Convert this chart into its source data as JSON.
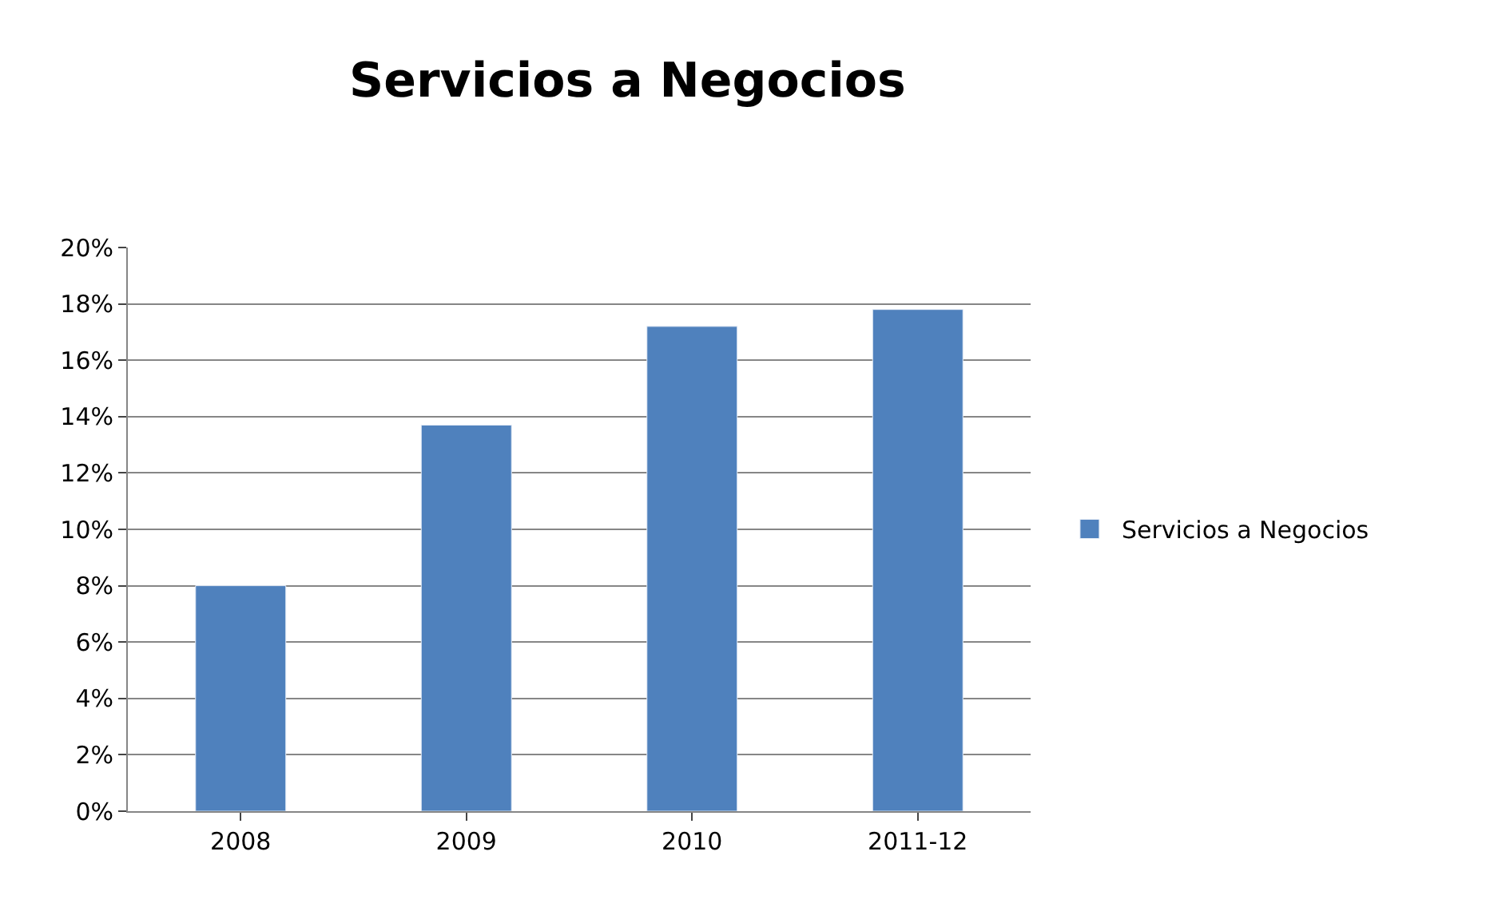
{
  "chart_data": {
    "type": "bar",
    "title": "Servicios a Negocios",
    "categories": [
      "2008",
      "2009",
      "2010",
      "2011-12"
    ],
    "series": [
      {
        "name": "Servicios a Negocios",
        "color": "#4f81bd",
        "values": [
          8.0,
          13.7,
          17.2,
          17.8
        ]
      }
    ],
    "ylim": [
      0,
      20
    ],
    "yticks": [
      {
        "value": 0,
        "label": "0%"
      },
      {
        "value": 2,
        "label": "2%"
      },
      {
        "value": 4,
        "label": "4%"
      },
      {
        "value": 6,
        "label": "6%"
      },
      {
        "value": 8,
        "label": "8%"
      },
      {
        "value": 10,
        "label": "10%"
      },
      {
        "value": 12,
        "label": "12%"
      },
      {
        "value": 14,
        "label": "14%"
      },
      {
        "value": 16,
        "label": "16%"
      },
      {
        "value": 18,
        "label": "18%"
      },
      {
        "value": 20,
        "label": "20%"
      }
    ],
    "grid": "y",
    "legend": "right"
  }
}
